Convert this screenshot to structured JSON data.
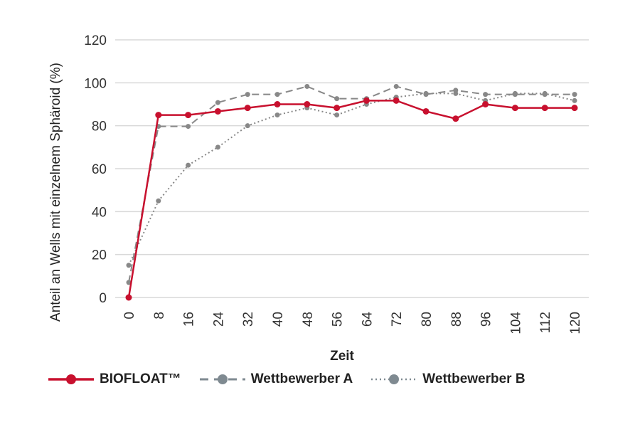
{
  "chart_data": {
    "type": "line",
    "title": "",
    "xlabel": "Zeit",
    "ylabel": "Anteil an Wells mit einzelnem Sphäroid (%)",
    "x": [
      0,
      8,
      16,
      24,
      32,
      40,
      48,
      56,
      64,
      72,
      80,
      88,
      96,
      104,
      112,
      120
    ],
    "x_tick_labels": [
      "0",
      "8",
      "16",
      "24",
      "32",
      "40",
      "48",
      "56",
      "64",
      "72",
      "80",
      "88",
      "96",
      "104",
      "112",
      "120"
    ],
    "ylim": [
      0,
      120
    ],
    "y_ticks": [
      "0",
      "20",
      "40",
      "60",
      "80",
      "100",
      "120"
    ],
    "grid": "horizontal",
    "legend_position": "bottom",
    "series": [
      {
        "name": "BIOFLOAT™",
        "color": "#c8102e",
        "style": "solid",
        "values": [
          0,
          85,
          85,
          86.7,
          88.3,
          90,
          90,
          88.3,
          91.7,
          91.7,
          86.7,
          83.3,
          90,
          88.3,
          88.3,
          88.3
        ]
      },
      {
        "name": "Wettbewerber A",
        "color": "#888888",
        "style": "dashed",
        "values": [
          7,
          79.7,
          79.7,
          90.8,
          94.6,
          94.6,
          98.3,
          92.6,
          92.6,
          98.3,
          94.6,
          96.5,
          94.6,
          94.6,
          94.6,
          94.6
        ]
      },
      {
        "name": "Wettbewerber B",
        "color": "#888888",
        "style": "dotted",
        "values": [
          15,
          45,
          61.6,
          70,
          80,
          85,
          88.3,
          85,
          90,
          93.3,
          95,
          95,
          91.7,
          95,
          95,
          91.7
        ]
      }
    ]
  }
}
